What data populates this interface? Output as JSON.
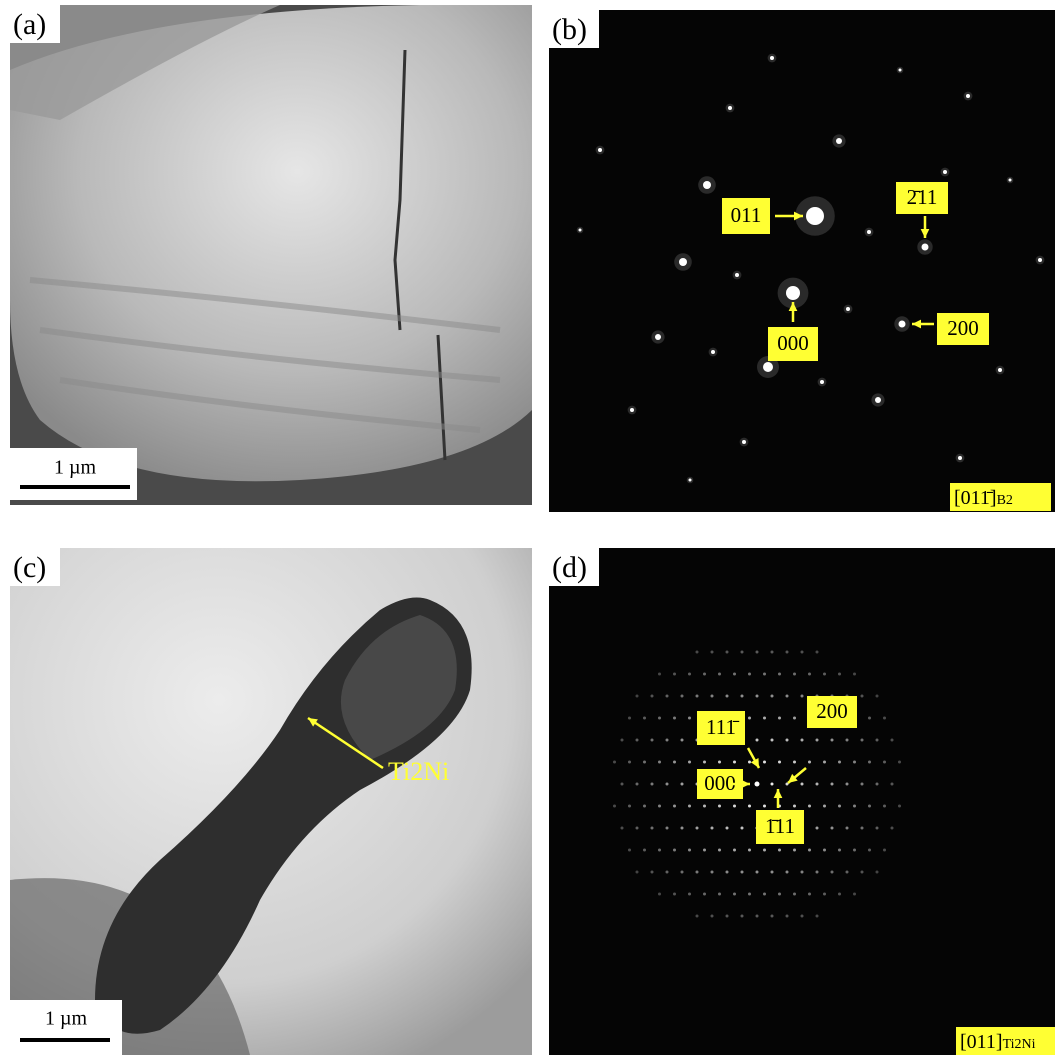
{
  "panels": [
    {
      "label": "(a)",
      "scale_bar": "1 µm"
    },
    {
      "label": "(b)",
      "spots": [
        "011",
        "2̄11",
        "000",
        "200"
      ],
      "zone_axis": {
        "index": "[011̄]",
        "phase": "B2"
      }
    },
    {
      "label": "(c)",
      "scale_bar": "1 µm",
      "annotation": "Ti2Ni"
    },
    {
      "label": "(d)",
      "spots": [
        "111̄",
        "200",
        "000",
        "1̄11"
      ],
      "zone_axis": {
        "index": "[011]",
        "phase": "Ti2Ni"
      }
    }
  ]
}
